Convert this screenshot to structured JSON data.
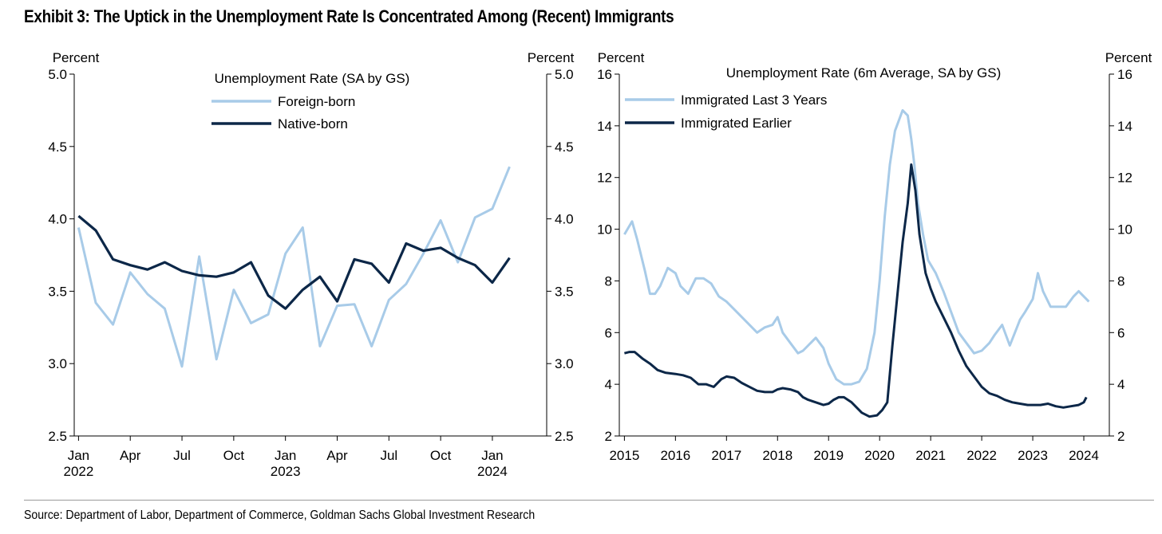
{
  "title": "Exhibit 3: The Uptick in the Unemployment Rate Is Concentrated Among (Recent) Immigrants",
  "source": "Source: Department of Labor, Department of Commerce, Goldman Sachs Global Investment Research",
  "colors": {
    "light": "#a8cbe8",
    "dark": "#0c2748"
  },
  "chart_data": [
    {
      "type": "line",
      "title": "Unemployment Rate (SA by GS)",
      "left_unit": "Percent",
      "right_unit": "Percent",
      "ylim": [
        2.5,
        5.0
      ],
      "y_ticks": [
        "2.5",
        "3.0",
        "3.5",
        "4.0",
        "4.5",
        "5.0"
      ],
      "x_tick_labels": [
        {
          "month": "Jan",
          "year": "2022"
        },
        {
          "month": "Apr",
          "year": ""
        },
        {
          "month": "Jul",
          "year": ""
        },
        {
          "month": "Oct",
          "year": ""
        },
        {
          "month": "Jan",
          "year": "2023"
        },
        {
          "month": "Apr",
          "year": ""
        },
        {
          "month": "Jul",
          "year": ""
        },
        {
          "month": "Oct",
          "year": ""
        },
        {
          "month": "Jan",
          "year": "2024"
        }
      ],
      "x": [
        "2022-01",
        "2022-02",
        "2022-03",
        "2022-04",
        "2022-05",
        "2022-06",
        "2022-07",
        "2022-08",
        "2022-09",
        "2022-10",
        "2022-11",
        "2022-12",
        "2023-01",
        "2023-02",
        "2023-03",
        "2023-04",
        "2023-05",
        "2023-06",
        "2023-07",
        "2023-08",
        "2023-09",
        "2023-10",
        "2023-11",
        "2023-12",
        "2024-01",
        "2024-02"
      ],
      "legend_position": "top-center",
      "grid": false,
      "series": [
        {
          "name": "Foreign-born",
          "color": "light",
          "values": [
            3.94,
            3.42,
            3.27,
            3.63,
            3.48,
            3.38,
            2.98,
            3.74,
            3.03,
            3.51,
            3.28,
            3.34,
            3.76,
            3.94,
            3.12,
            3.4,
            3.41,
            3.12,
            3.44,
            3.55,
            3.76,
            3.99,
            3.7,
            4.01,
            4.07,
            4.36
          ]
        },
        {
          "name": "Native-born",
          "color": "dark",
          "values": [
            4.02,
            3.92,
            3.72,
            3.68,
            3.65,
            3.7,
            3.64,
            3.61,
            3.6,
            3.63,
            3.7,
            3.47,
            3.38,
            3.51,
            3.6,
            3.43,
            3.72,
            3.69,
            3.56,
            3.83,
            3.78,
            3.8,
            3.73,
            3.68,
            3.56,
            3.73
          ]
        }
      ]
    },
    {
      "type": "line",
      "title": "Unemployment Rate (6m Average, SA by GS)",
      "left_unit": "Percent",
      "right_unit": "Percent",
      "ylim": [
        2,
        16
      ],
      "y_ticks": [
        "2",
        "4",
        "6",
        "8",
        "10",
        "12",
        "14",
        "16"
      ],
      "x_tick_labels": [
        "2015",
        "2016",
        "2017",
        "2018",
        "2019",
        "2020",
        "2021",
        "2022",
        "2023",
        "2024"
      ],
      "legend_position": "top-left",
      "grid": false,
      "series": [
        {
          "name": "Immigrated Last 3 Years",
          "color": "light",
          "x": [
            2015.0,
            2015.15,
            2015.25,
            2015.4,
            2015.5,
            2015.6,
            2015.7,
            2015.85,
            2016.0,
            2016.1,
            2016.25,
            2016.4,
            2016.55,
            2016.7,
            2016.85,
            2017.0,
            2017.15,
            2017.3,
            2017.45,
            2017.6,
            2017.75,
            2017.9,
            2018.0,
            2018.1,
            2018.25,
            2018.4,
            2018.5,
            2018.6,
            2018.75,
            2018.9,
            2019.0,
            2019.15,
            2019.3,
            2019.45,
            2019.6,
            2019.75,
            2019.9,
            2020.0,
            2020.1,
            2020.2,
            2020.3,
            2020.45,
            2020.55,
            2020.62,
            2020.68,
            2020.75,
            2020.85,
            2020.95,
            2021.1,
            2021.25,
            2021.4,
            2021.55,
            2021.7,
            2021.85,
            2022.0,
            2022.15,
            2022.25,
            2022.4,
            2022.55,
            2022.65,
            2022.75,
            2022.85,
            2023.0,
            2023.1,
            2023.2,
            2023.35,
            2023.5,
            2023.65,
            2023.8,
            2023.9,
            2024.0,
            2024.1
          ],
          "values": [
            9.8,
            10.3,
            9.6,
            8.4,
            7.5,
            7.5,
            7.8,
            8.5,
            8.3,
            7.8,
            7.5,
            8.1,
            8.1,
            7.9,
            7.4,
            7.2,
            6.9,
            6.6,
            6.3,
            6.0,
            6.2,
            6.3,
            6.6,
            6.0,
            5.6,
            5.2,
            5.3,
            5.5,
            5.8,
            5.4,
            4.8,
            4.2,
            4.0,
            4.0,
            4.1,
            4.6,
            6.0,
            8.0,
            10.5,
            12.5,
            13.8,
            14.6,
            14.4,
            13.5,
            12.5,
            11.0,
            9.8,
            8.8,
            8.3,
            7.6,
            6.8,
            6.0,
            5.6,
            5.2,
            5.3,
            5.6,
            5.9,
            6.3,
            5.5,
            6.0,
            6.5,
            6.8,
            7.3,
            8.3,
            7.6,
            7.0,
            7.0,
            7.0,
            7.4,
            7.6,
            7.4,
            7.2
          ]
        },
        {
          "name": "Immigrated Earlier",
          "color": "dark",
          "x": [
            2015.0,
            2015.1,
            2015.2,
            2015.35,
            2015.5,
            2015.65,
            2015.8,
            2016.0,
            2016.15,
            2016.3,
            2016.45,
            2016.6,
            2016.75,
            2016.9,
            2017.0,
            2017.15,
            2017.3,
            2017.45,
            2017.6,
            2017.75,
            2017.9,
            2018.0,
            2018.1,
            2018.25,
            2018.4,
            2018.5,
            2018.6,
            2018.75,
            2018.9,
            2019.0,
            2019.1,
            2019.2,
            2019.3,
            2019.45,
            2019.55,
            2019.65,
            2019.8,
            2019.95,
            2020.05,
            2020.15,
            2020.25,
            2020.35,
            2020.45,
            2020.55,
            2020.62,
            2020.7,
            2020.78,
            2020.9,
            2021.0,
            2021.1,
            2021.25,
            2021.4,
            2021.55,
            2021.7,
            2021.85,
            2022.0,
            2022.15,
            2022.3,
            2022.45,
            2022.6,
            2022.75,
            2022.9,
            2023.0,
            2023.15,
            2023.3,
            2023.45,
            2023.6,
            2023.75,
            2023.9,
            2024.0,
            2024.05
          ],
          "values": [
            5.2,
            5.25,
            5.25,
            5.0,
            4.8,
            4.55,
            4.45,
            4.4,
            4.35,
            4.25,
            4.0,
            4.0,
            3.9,
            4.2,
            4.3,
            4.25,
            4.05,
            3.9,
            3.75,
            3.7,
            3.7,
            3.8,
            3.85,
            3.8,
            3.7,
            3.5,
            3.4,
            3.3,
            3.2,
            3.25,
            3.4,
            3.5,
            3.5,
            3.3,
            3.1,
            2.9,
            2.75,
            2.8,
            3.0,
            3.3,
            5.5,
            7.5,
            9.5,
            11.0,
            12.5,
            11.5,
            9.8,
            8.3,
            7.7,
            7.2,
            6.6,
            6.0,
            5.3,
            4.7,
            4.3,
            3.9,
            3.65,
            3.55,
            3.4,
            3.3,
            3.25,
            3.2,
            3.2,
            3.2,
            3.25,
            3.15,
            3.1,
            3.15,
            3.2,
            3.3,
            3.5
          ]
        }
      ]
    }
  ]
}
